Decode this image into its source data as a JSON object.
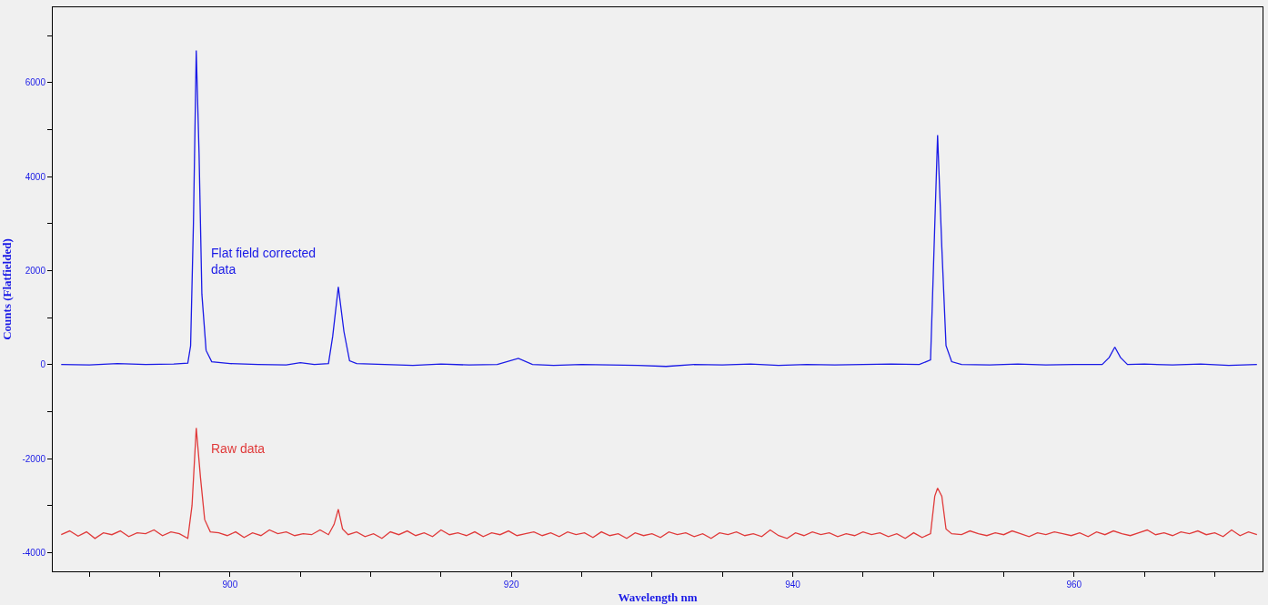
{
  "chart_data": {
    "type": "line",
    "xlabel": "Wavelength nm",
    "ylabel": "Counts (Flatfielded)",
    "xlim": [
      887.4,
      973.4
    ],
    "xticks": [
      {
        "value": 890,
        "label": null
      },
      {
        "value": 895,
        "label": null
      },
      900,
      {
        "value": 905,
        "label": null
      },
      {
        "value": 910,
        "label": null
      },
      {
        "value": 915,
        "label": null
      },
      920,
      {
        "value": 925,
        "label": null
      },
      {
        "value": 930,
        "label": null
      },
      {
        "value": 935,
        "label": null
      },
      940,
      {
        "value": 945,
        "label": null
      },
      {
        "value": 950,
        "label": null
      },
      {
        "value": 955,
        "label": null
      },
      960,
      {
        "value": 965,
        "label": null
      },
      {
        "value": 970,
        "label": null
      }
    ],
    "ylim": [
      -4400,
      7600
    ],
    "yticks": [
      -4000,
      {
        "value": -3000,
        "label": null
      },
      -2000,
      {
        "value": -1000,
        "label": null
      },
      0,
      {
        "value": 1000,
        "label": null
      },
      2000,
      {
        "value": 3000,
        "label": null
      },
      4000,
      {
        "value": 5000,
        "label": null
      },
      6000,
      {
        "value": 7000,
        "label": null
      }
    ],
    "grid": false,
    "marker": "none",
    "line_style": "solid",
    "annotations": [
      "Flat field corrected\ndata",
      "Raw data"
    ],
    "series": [
      {
        "color": "#1a1ae6",
        "x": [
          888,
          890,
          892,
          894,
          896,
          897,
          897.2,
          897.4,
          897.6,
          897.8,
          898.0,
          898.3,
          898.7,
          900,
          902,
          904,
          905,
          906,
          907,
          907.3,
          907.7,
          908.1,
          908.5,
          909,
          911,
          913,
          915,
          917,
          919,
          920.5,
          921.5,
          923,
          925,
          927,
          929,
          931,
          933,
          935,
          937,
          939,
          941,
          943,
          945,
          947,
          949,
          949.8,
          950.0,
          950.3,
          950.6,
          950.9,
          951.3,
          952,
          954,
          956,
          958,
          960,
          962,
          962.5,
          962.9,
          963.3,
          963.8,
          965,
          967,
          969,
          971,
          973
        ],
        "values": [
          0,
          -10,
          20,
          0,
          10,
          30,
          400,
          3000,
          6680,
          4500,
          1500,
          300,
          60,
          20,
          0,
          -10,
          40,
          0,
          20,
          600,
          1650,
          700,
          80,
          20,
          0,
          -20,
          10,
          -10,
          0,
          130,
          0,
          -20,
          0,
          -10,
          -20,
          -40,
          0,
          -10,
          10,
          -20,
          0,
          -10,
          0,
          10,
          0,
          100,
          2000,
          4880,
          2500,
          400,
          60,
          0,
          -10,
          10,
          -10,
          0,
          0,
          150,
          370,
          150,
          0,
          10,
          -10,
          10,
          -20,
          0
        ]
      },
      {
        "color": "#e03a3a",
        "x": [
          888.0,
          888.6,
          889.2,
          889.8,
          890.4,
          891.0,
          891.6,
          892.2,
          892.8,
          893.4,
          894.0,
          894.6,
          895.2,
          895.8,
          896.4,
          897.0,
          897.3,
          897.6,
          897.9,
          898.2,
          898.6,
          899.2,
          899.8,
          900.4,
          901.0,
          901.6,
          902.2,
          902.8,
          903.4,
          904.0,
          904.6,
          905.2,
          905.8,
          906.4,
          907.0,
          907.4,
          907.7,
          908.0,
          908.4,
          909.0,
          909.6,
          910.2,
          910.8,
          911.4,
          912.0,
          912.6,
          913.2,
          913.8,
          914.4,
          915.0,
          915.6,
          916.2,
          916.8,
          917.4,
          918.0,
          918.6,
          919.2,
          919.8,
          920.4,
          921.0,
          921.6,
          922.2,
          922.8,
          923.4,
          924.0,
          924.6,
          925.2,
          925.8,
          926.4,
          927.0,
          927.6,
          928.2,
          928.8,
          929.4,
          930.0,
          930.6,
          931.2,
          931.8,
          932.4,
          933.0,
          933.6,
          934.2,
          934.8,
          935.4,
          936.0,
          936.6,
          937.2,
          937.8,
          938.4,
          939.0,
          939.6,
          940.2,
          940.8,
          941.4,
          942.0,
          942.6,
          943.2,
          943.8,
          944.4,
          945.0,
          945.6,
          946.2,
          946.8,
          947.4,
          948.0,
          948.6,
          949.2,
          949.8,
          950.1,
          950.3,
          950.6,
          950.9,
          951.3,
          952.0,
          952.6,
          953.2,
          953.8,
          954.4,
          955.0,
          955.6,
          956.2,
          956.8,
          957.4,
          958.0,
          958.6,
          959.2,
          959.8,
          960.4,
          961.0,
          961.6,
          962.2,
          962.8,
          963.4,
          964.0,
          964.6,
          965.2,
          965.8,
          966.4,
          967.0,
          967.6,
          968.2,
          968.8,
          969.4,
          970.0,
          970.6,
          971.2,
          971.8,
          972.4,
          973.0
        ],
        "values": [
          -3620,
          -3540,
          -3650,
          -3560,
          -3700,
          -3580,
          -3620,
          -3540,
          -3660,
          -3580,
          -3600,
          -3520,
          -3640,
          -3560,
          -3600,
          -3700,
          -3000,
          -1350,
          -2400,
          -3300,
          -3560,
          -3580,
          -3640,
          -3560,
          -3680,
          -3580,
          -3640,
          -3520,
          -3600,
          -3560,
          -3640,
          -3600,
          -3620,
          -3520,
          -3620,
          -3400,
          -3080,
          -3500,
          -3620,
          -3560,
          -3660,
          -3600,
          -3700,
          -3560,
          -3620,
          -3540,
          -3640,
          -3580,
          -3660,
          -3520,
          -3620,
          -3580,
          -3640,
          -3560,
          -3660,
          -3580,
          -3620,
          -3540,
          -3640,
          -3600,
          -3560,
          -3640,
          -3580,
          -3660,
          -3560,
          -3620,
          -3580,
          -3680,
          -3560,
          -3640,
          -3600,
          -3700,
          -3580,
          -3640,
          -3600,
          -3680,
          -3560,
          -3620,
          -3580,
          -3660,
          -3600,
          -3700,
          -3580,
          -3620,
          -3560,
          -3640,
          -3600,
          -3660,
          -3520,
          -3640,
          -3700,
          -3580,
          -3640,
          -3560,
          -3620,
          -3580,
          -3660,
          -3600,
          -3640,
          -3560,
          -3620,
          -3580,
          -3660,
          -3600,
          -3700,
          -3580,
          -3680,
          -3600,
          -2800,
          -2630,
          -2800,
          -3500,
          -3600,
          -3620,
          -3540,
          -3600,
          -3640,
          -3580,
          -3620,
          -3540,
          -3600,
          -3660,
          -3580,
          -3620,
          -3560,
          -3600,
          -3640,
          -3580,
          -3660,
          -3560,
          -3620,
          -3540,
          -3600,
          -3640,
          -3580,
          -3520,
          -3620,
          -3580,
          -3640,
          -3560,
          -3600,
          -3540,
          -3620,
          -3580,
          -3660,
          -3520,
          -3640,
          -3560,
          -3620
        ]
      }
    ]
  }
}
